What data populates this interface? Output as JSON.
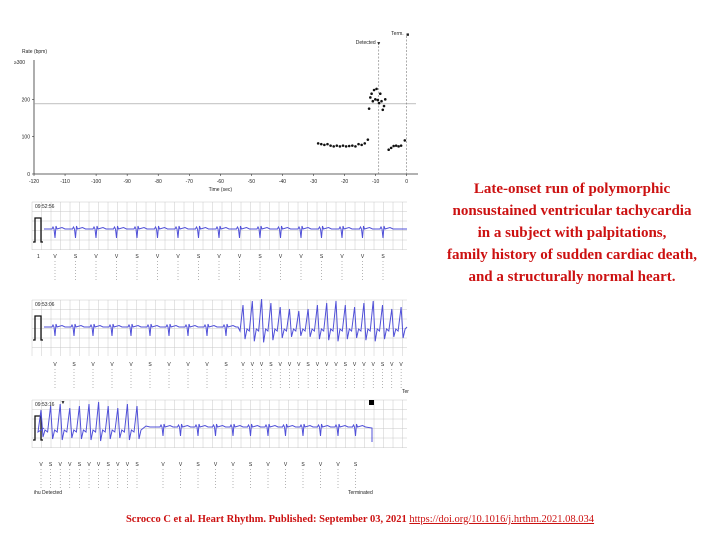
{
  "chart_data": [
    {
      "type": "scatter",
      "ylabel": "Rate (bpm)",
      "xlabel": "Time (sec)",
      "y_max_label": "≥300",
      "xlim": [
        -120,
        3
      ],
      "ylim": [
        0,
        300
      ],
      "x_ticks": [
        -120,
        -110,
        -100,
        -90,
        -80,
        -70,
        -60,
        -50,
        -40,
        -30,
        -20,
        -10,
        0
      ],
      "y_ticks": [
        0,
        100,
        200
      ],
      "threshold": 188,
      "markers": [
        {
          "label": "Detected",
          "x": -9,
          "symbol": "▼",
          "color": "#cc0000"
        },
        {
          "label": "Term.",
          "x": 0,
          "symbol": "■",
          "color": "#000000"
        }
      ],
      "points": [
        [
          -28.5,
          82
        ],
        [
          -27.5,
          80
        ],
        [
          -26.5,
          78
        ],
        [
          -25.5,
          80
        ],
        [
          -24.5,
          76
        ],
        [
          -23.5,
          74
        ],
        [
          -22.5,
          76
        ],
        [
          -21.5,
          74
        ],
        [
          -20.5,
          76
        ],
        [
          -19.5,
          74
        ],
        [
          -18.5,
          75
        ],
        [
          -17.5,
          76
        ],
        [
          -16.5,
          74
        ],
        [
          -15.5,
          80
        ],
        [
          -14.5,
          78
        ],
        [
          -13.5,
          82
        ],
        [
          -12.5,
          92
        ],
        [
          -12.1,
          175
        ],
        [
          -11.7,
          205
        ],
        [
          -11.3,
          215
        ],
        [
          -10.9,
          195
        ],
        [
          -10.5,
          225
        ],
        [
          -10.1,
          200
        ],
        [
          -9.7,
          228
        ],
        [
          -9.3,
          198
        ],
        [
          -8.9,
          190
        ],
        [
          -8.5,
          215
        ],
        [
          -8.1,
          195
        ],
        [
          -7.7,
          172
        ],
        [
          -7.3,
          182
        ],
        [
          -6.9,
          200
        ],
        [
          -5.8,
          65
        ],
        [
          -5.0,
          70
        ],
        [
          -4.2,
          75
        ],
        [
          -3.4,
          76
        ],
        [
          -2.6,
          74
        ],
        [
          -1.8,
          76
        ],
        [
          -0.6,
          90
        ]
      ]
    },
    {
      "type": "line",
      "panel": "ecg-strip-1",
      "timestamp": "09:52:56",
      "rhythm": "sinus",
      "beats": 18
    },
    {
      "type": "line",
      "panel": "ecg-strip-2",
      "timestamp": "09:53:06",
      "rhythm": "sinus-then-polymorphic-vt",
      "end_label": "Ter"
    },
    {
      "type": "line",
      "panel": "ecg-strip-3",
      "timestamp": "09:53:16",
      "rhythm": "polymorphic-vt-then-sinus",
      "left_label": "ihu Detected",
      "right_label": "Terminated"
    }
  ],
  "caption": {
    "lines": [
      "Late-onset run of polymorphic",
      "nonsustained ventricular tachycardia",
      "in a subject with palpitations,",
      "family history of sudden cardiac death,",
      "and a structurally normal heart."
    ]
  },
  "citation": {
    "text": "Scrocco C et al. Heart Rhythm. Published: September 03, 2021",
    "link": "https://doi.org/10.1016/j.hrthm.2021.08.034"
  },
  "colors": {
    "ecg": "#5050d8",
    "grid": "#c8c8c8",
    "caption": "#cc1111",
    "detected_marker": "#cc0000"
  }
}
